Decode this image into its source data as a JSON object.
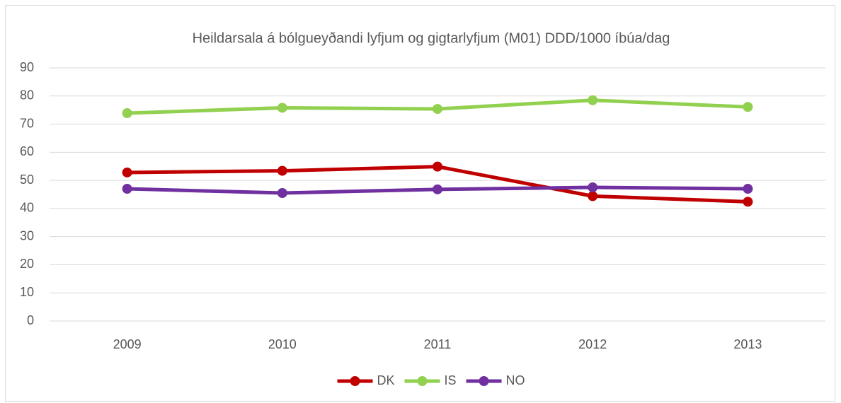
{
  "chart_data": {
    "type": "line",
    "title": "Heildarsala á bólgueyðandi lyfjum og gigtarlyfjum (M01) DDD/1000 íbúa/dag",
    "categories": [
      "2009",
      "2010",
      "2011",
      "2012",
      "2013"
    ],
    "series": [
      {
        "name": "DK",
        "color": "#c00000",
        "values": [
          52.8,
          53.4,
          54.9,
          44.4,
          42.4
        ]
      },
      {
        "name": "IS",
        "color": "#92d050",
        "values": [
          73.9,
          75.8,
          75.4,
          78.5,
          76.1
        ]
      },
      {
        "name": "NO",
        "color": "#7030a0",
        "values": [
          47.0,
          45.5,
          46.8,
          47.5,
          47.0
        ]
      }
    ],
    "ylim": [
      0,
      90
    ],
    "yticks": [
      0,
      10,
      20,
      30,
      40,
      50,
      60,
      70,
      80,
      90
    ],
    "grid": true,
    "legend": "bottom"
  }
}
